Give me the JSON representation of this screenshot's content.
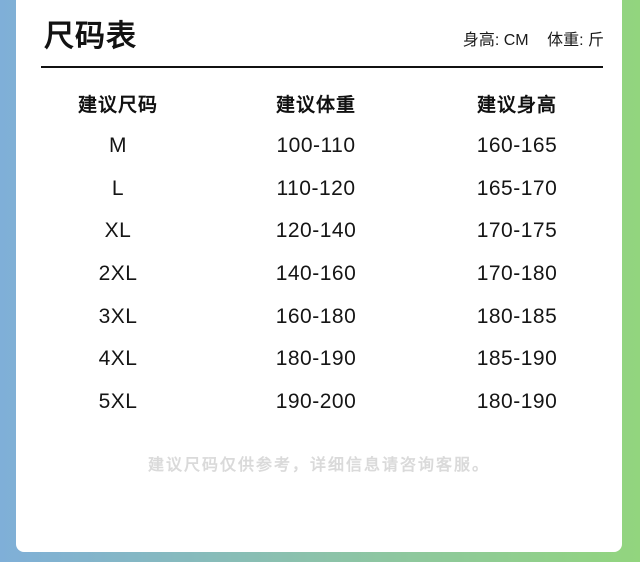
{
  "page": {
    "title": "尺码表",
    "units": {
      "height_label": "身高: CM",
      "weight_label": "体重: 斤"
    },
    "footer_note": "建议尺码仅供参考，详细信息请咨询客服。"
  },
  "chart_data": {
    "type": "table",
    "title": "尺码表",
    "columns": [
      "建议尺码",
      "建议体重",
      "建议身高"
    ],
    "units": {
      "height": "CM",
      "weight": "斤"
    },
    "rows": [
      [
        "M",
        "100-110",
        "160-165"
      ],
      [
        "L",
        "110-120",
        "165-170"
      ],
      [
        "XL",
        "120-140",
        "170-175"
      ],
      [
        "2XL",
        "140-160",
        "170-180"
      ],
      [
        "3XL",
        "160-180",
        "180-185"
      ],
      [
        "4XL",
        "180-190",
        "185-190"
      ],
      [
        "5XL",
        "190-200",
        "180-190"
      ]
    ],
    "footnote": "建议尺码仅供参考，详细信息请咨询客服。"
  },
  "colors": {
    "frame_left": "#7fafd8",
    "frame_right": "#92d57e",
    "card_background": "#ffffff",
    "text": "#111111",
    "muted_text": "#dadada"
  }
}
